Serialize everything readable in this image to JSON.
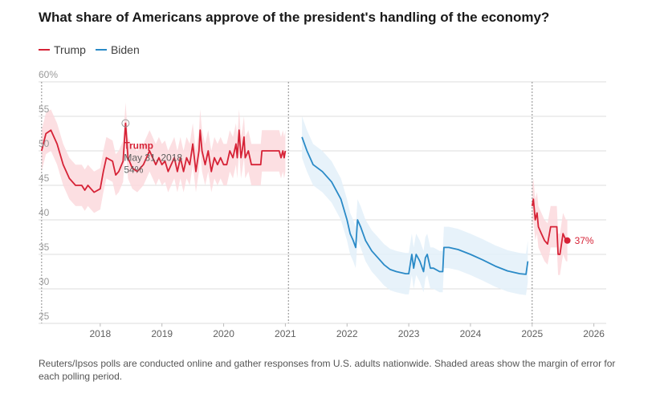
{
  "header": {
    "title": "What share of Americans approve of the president's handling of the economy?"
  },
  "legend": [
    {
      "name": "Trump",
      "color": "#d62236"
    },
    {
      "name": "Biden",
      "color": "#2a8ac7"
    }
  ],
  "footnote": "Reuters/Ipsos polls are conducted online and gather responses from U.S. adults nationwide. Shaded areas show the margin of error for each polling period.",
  "chart_data": {
    "type": "line",
    "title": "What share of Americans approve of the president's handling of the economy?",
    "ylim": [
      25,
      60
    ],
    "yticks": [
      "25",
      "30",
      "35",
      "40",
      "45",
      "50",
      "55",
      "60%"
    ],
    "ytick_values": [
      25,
      30,
      35,
      40,
      45,
      50,
      55,
      60
    ],
    "xlim": [
      2017.0,
      2026.2
    ],
    "xticks": [
      "2018",
      "2019",
      "2020",
      "2021",
      "2022",
      "2023",
      "2024",
      "2025",
      "2026"
    ],
    "xtick_values": [
      2018,
      2019,
      2020,
      2021,
      2022,
      2023,
      2024,
      2025,
      2026
    ],
    "grid": true,
    "term_dividers": [
      2017.05,
      2021.05,
      2025.0
    ],
    "series": [
      {
        "name": "Trump",
        "color": "#d62236",
        "band_color": "#fbd9dd",
        "segments": [
          [
            [
              2017.05,
              50
            ],
            [
              2017.12,
              52.5
            ],
            [
              2017.2,
              53
            ],
            [
              2017.3,
              51
            ],
            [
              2017.4,
              48
            ],
            [
              2017.5,
              46
            ],
            [
              2017.6,
              45
            ],
            [
              2017.7,
              45
            ],
            [
              2017.75,
              44.3
            ],
            [
              2017.8,
              45
            ],
            [
              2017.85,
              44.5
            ],
            [
              2017.9,
              44
            ],
            [
              2018.0,
              44.5
            ],
            [
              2018.05,
              47
            ],
            [
              2018.1,
              49
            ],
            [
              2018.2,
              48.5
            ],
            [
              2018.25,
              46.5
            ],
            [
              2018.3,
              47
            ],
            [
              2018.37,
              48.5
            ],
            [
              2018.41,
              54
            ],
            [
              2018.45,
              49
            ],
            [
              2018.52,
              47.5
            ],
            [
              2018.6,
              47
            ],
            [
              2018.7,
              48
            ],
            [
              2018.8,
              50
            ],
            [
              2018.9,
              48
            ],
            [
              2018.95,
              49
            ],
            [
              2019.0,
              48
            ],
            [
              2019.05,
              48.5
            ],
            [
              2019.1,
              47
            ],
            [
              2019.15,
              48
            ],
            [
              2019.2,
              49
            ],
            [
              2019.25,
              47
            ],
            [
              2019.3,
              49
            ],
            [
              2019.35,
              47
            ],
            [
              2019.4,
              49
            ],
            [
              2019.45,
              48
            ],
            [
              2019.5,
              51
            ],
            [
              2019.55,
              47
            ],
            [
              2019.6,
              50
            ],
            [
              2019.62,
              53
            ],
            [
              2019.65,
              50
            ],
            [
              2019.7,
              48
            ],
            [
              2019.75,
              50
            ],
            [
              2019.8,
              47
            ],
            [
              2019.85,
              49
            ],
            [
              2019.9,
              48
            ],
            [
              2019.95,
              49
            ],
            [
              2020.0,
              48
            ],
            [
              2020.05,
              48
            ],
            [
              2020.1,
              50
            ],
            [
              2020.15,
              49
            ],
            [
              2020.2,
              51
            ],
            [
              2020.22,
              49
            ],
            [
              2020.25,
              53
            ],
            [
              2020.28,
              49
            ],
            [
              2020.3,
              50
            ],
            [
              2020.33,
              52
            ],
            [
              2020.35,
              49
            ],
            [
              2020.4,
              50
            ],
            [
              2020.45,
              48
            ],
            [
              2020.5,
              48
            ],
            [
              2020.55,
              48
            ],
            [
              2020.6,
              48
            ],
            [
              2020.62,
              50
            ],
            [
              2020.7,
              50
            ],
            [
              2020.8,
              50
            ],
            [
              2020.9,
              50
            ],
            [
              2020.93,
              49
            ],
            [
              2020.96,
              50
            ],
            [
              2020.98,
              49
            ],
            [
              2021.0,
              50
            ]
          ],
          [
            [
              2025.0,
              42
            ],
            [
              2025.02,
              43
            ],
            [
              2025.05,
              40
            ],
            [
              2025.08,
              41
            ],
            [
              2025.1,
              39
            ],
            [
              2025.15,
              38
            ],
            [
              2025.2,
              37
            ],
            [
              2025.25,
              36.5
            ],
            [
              2025.3,
              39
            ],
            [
              2025.35,
              39
            ],
            [
              2025.4,
              39
            ],
            [
              2025.42,
              35
            ],
            [
              2025.45,
              35
            ],
            [
              2025.5,
              38
            ],
            [
              2025.55,
              37
            ],
            [
              2025.57,
              37
            ]
          ]
        ],
        "end_label": "37%",
        "end_point": [
          2025.57,
          37
        ]
      },
      {
        "name": "Biden",
        "color": "#2a8ac7",
        "band_color": "#e3f0f9",
        "segments": [
          [
            [
              2021.27,
              52
            ],
            [
              2021.35,
              50
            ],
            [
              2021.45,
              48
            ],
            [
              2021.6,
              47
            ],
            [
              2021.75,
              45.5
            ],
            [
              2021.9,
              43
            ],
            [
              2022.0,
              40
            ],
            [
              2022.05,
              38
            ],
            [
              2022.1,
              37
            ],
            [
              2022.14,
              36
            ],
            [
              2022.17,
              40
            ],
            [
              2022.22,
              39
            ],
            [
              2022.3,
              37
            ],
            [
              2022.4,
              35.5
            ],
            [
              2022.5,
              34.5
            ],
            [
              2022.6,
              33.5
            ],
            [
              2022.7,
              32.8
            ],
            [
              2022.8,
              32.5
            ],
            [
              2022.95,
              32.2
            ],
            [
              2023.0,
              32.2
            ],
            [
              2023.05,
              35
            ],
            [
              2023.08,
              33
            ],
            [
              2023.12,
              35
            ],
            [
              2023.18,
              34
            ],
            [
              2023.24,
              32.5
            ],
            [
              2023.27,
              34.5
            ],
            [
              2023.3,
              35
            ],
            [
              2023.35,
              33
            ],
            [
              2023.4,
              33
            ],
            [
              2023.5,
              32.5
            ],
            [
              2023.55,
              32.5
            ],
            [
              2023.57,
              36
            ],
            [
              2023.65,
              36
            ],
            [
              2023.8,
              35.7
            ],
            [
              2024.0,
              35
            ],
            [
              2024.2,
              34.2
            ],
            [
              2024.4,
              33.3
            ],
            [
              2024.6,
              32.6
            ],
            [
              2024.8,
              32.2
            ],
            [
              2024.9,
              32.1
            ],
            [
              2024.93,
              34
            ]
          ]
        ]
      }
    ],
    "annotation": {
      "series": "Trump",
      "label": "Trump",
      "date": "May 31, 2018",
      "value_label": "54%",
      "point": [
        2018.41,
        54
      ]
    }
  }
}
